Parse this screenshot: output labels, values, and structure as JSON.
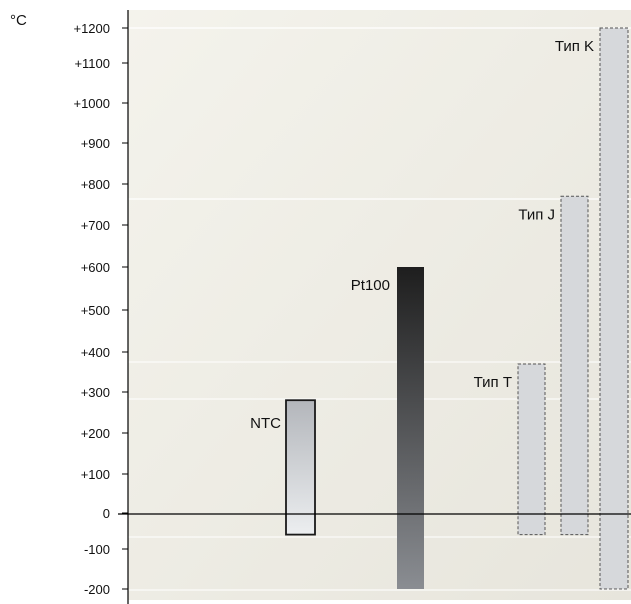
{
  "chart_data": {
    "type": "bar",
    "unit_label": "°C",
    "y_ticks": [
      "+1200",
      "+1100",
      "+1000",
      "+900",
      "+800",
      "+700",
      "+600",
      "+500",
      "+400",
      "+300",
      "+200",
      "+100",
      "0",
      "-100",
      "-200"
    ],
    "ylim": [
      -200,
      1200
    ],
    "grid": false,
    "series": [
      {
        "name": "NTC",
        "range": [
          -60,
          280
        ],
        "style": "solid-outline",
        "fill": "#c8cbd0"
      },
      {
        "name": "Pt100",
        "range": [
          -200,
          600
        ],
        "style": "gradient-dark",
        "fill": "#2a2a2a"
      },
      {
        "name": "Тип T",
        "range": [
          -60,
          370
        ],
        "style": "dashed-outline",
        "fill": "#d6d8db"
      },
      {
        "name": "Тип J",
        "range": [
          -60,
          770
        ],
        "style": "dashed-outline",
        "fill": "#d6d8db"
      },
      {
        "name": "Тип K",
        "range": [
          -200,
          1200
        ],
        "style": "dashed-outline",
        "fill": "#d6d8db"
      }
    ]
  }
}
